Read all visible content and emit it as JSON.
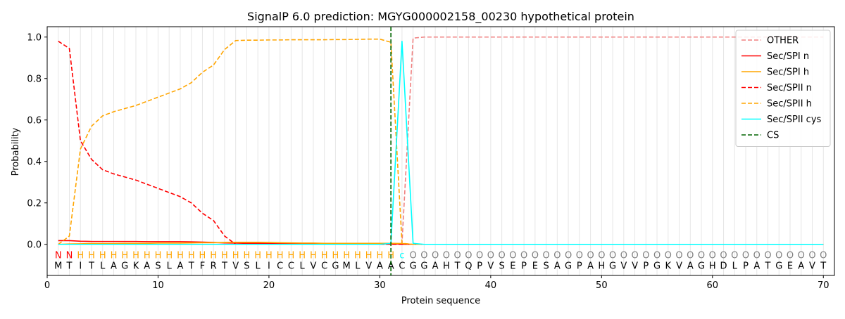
{
  "chart_data": {
    "type": "line",
    "title": "SignalP 6.0 prediction: MGYG000002158_00230 hypothetical protein",
    "xlabel": "Protein sequence",
    "ylabel": "Probability",
    "xlim": [
      0,
      71
    ],
    "ylim": [
      -0.15,
      1.05
    ],
    "xticks": [
      0,
      10,
      20,
      30,
      40,
      50,
      60,
      70
    ],
    "yticks": [
      0.0,
      0.2,
      0.4,
      0.6,
      0.8,
      1.0
    ],
    "ytick_labels": [
      "0.0",
      "0.2",
      "0.4",
      "0.6",
      "0.8",
      "1.0"
    ],
    "grid": "vertical lines at each residue",
    "legend_position": "top-right",
    "sequence": [
      "M",
      "T",
      "I",
      "T",
      "L",
      "A",
      "G",
      "K",
      "A",
      "S",
      "L",
      "A",
      "T",
      "F",
      "R",
      "T",
      "V",
      "S",
      "L",
      "I",
      "C",
      "C",
      "L",
      "V",
      "C",
      "G",
      "M",
      "L",
      "V",
      "A",
      "A",
      "C",
      "G",
      "G",
      "A",
      "H",
      "T",
      "Q",
      "P",
      "V",
      "S",
      "E",
      "P",
      "E",
      "S",
      "A",
      "G",
      "P",
      "A",
      "H",
      "G",
      "V",
      "V",
      "P",
      "G",
      "K",
      "V",
      "A",
      "G",
      "H",
      "D",
      "L",
      "P",
      "A",
      "T",
      "G",
      "E",
      "A",
      "V",
      "T"
    ],
    "region_labels": [
      "N",
      "N",
      "H",
      "H",
      "H",
      "H",
      "H",
      "H",
      "H",
      "H",
      "H",
      "H",
      "H",
      "H",
      "H",
      "H",
      "H",
      "H",
      "H",
      "H",
      "H",
      "H",
      "H",
      "H",
      "H",
      "H",
      "H",
      "H",
      "H",
      "H",
      "H",
      "c",
      "O",
      "O",
      "O",
      "O",
      "O",
      "O",
      "O",
      "O",
      "O",
      "O",
      "O",
      "O",
      "O",
      "O",
      "O",
      "O",
      "O",
      "O",
      "O",
      "O",
      "O",
      "O",
      "O",
      "O",
      "O",
      "O",
      "O",
      "O",
      "O",
      "O",
      "O",
      "O",
      "O",
      "O",
      "O",
      "O",
      "O",
      "O"
    ],
    "region_label_colors": {
      "N": "#ff0000",
      "H": "#ffa500",
      "c": "#00ffff",
      "O": "#808080"
    },
    "cleavage_site": 31,
    "series": [
      {
        "name": "OTHER",
        "color": "#f08080",
        "dash": "dashed",
        "values": [
          0,
          0,
          0,
          0,
          0,
          0,
          0,
          0,
          0,
          0,
          0,
          0,
          0,
          0,
          0,
          0,
          0,
          0,
          0,
          0,
          0,
          0,
          0,
          0,
          0,
          0,
          0,
          0,
          0,
          0,
          0,
          0.005,
          0.995,
          1.0,
          1.0,
          1.0,
          1.0,
          1.0,
          1.0,
          1.0,
          1.0,
          1.0,
          1.0,
          1.0,
          1.0,
          1.0,
          1.0,
          1.0,
          1.0,
          1.0,
          1.0,
          1.0,
          1.0,
          1.0,
          1.0,
          1.0,
          1.0,
          1.0,
          1.0,
          1.0,
          1.0,
          1.0,
          1.0,
          1.0,
          1.0,
          1.0,
          1.0,
          1.0,
          1.0,
          1.0
        ]
      },
      {
        "name": "Sec/SPI n",
        "color": "#ff0000",
        "dash": "solid",
        "values": [
          0.018,
          0.018,
          0.015,
          0.014,
          0.014,
          0.014,
          0.014,
          0.014,
          0.013,
          0.013,
          0.013,
          0.013,
          0.012,
          0.011,
          0.009,
          0.007,
          0.006,
          0.005,
          0.005,
          0.005,
          0.004,
          0.004,
          0.004,
          0.003,
          0.003,
          0.003,
          0.003,
          0.003,
          0.003,
          0.003,
          0.003,
          0.0,
          0.0,
          0,
          0,
          0,
          0,
          0,
          0,
          0,
          0,
          0,
          0,
          0,
          0,
          0,
          0,
          0,
          0,
          0,
          0,
          0,
          0,
          0,
          0,
          0,
          0,
          0,
          0,
          0,
          0,
          0,
          0,
          0,
          0,
          0,
          0,
          0,
          0,
          0
        ]
      },
      {
        "name": "Sec/SPI h",
        "color": "#ffa500",
        "dash": "solid",
        "values": [
          0.0,
          0.002,
          0.003,
          0.004,
          0.004,
          0.004,
          0.005,
          0.005,
          0.005,
          0.006,
          0.006,
          0.006,
          0.007,
          0.008,
          0.008,
          0.009,
          0.01,
          0.01,
          0.01,
          0.009,
          0.008,
          0.007,
          0.006,
          0.006,
          0.005,
          0.005,
          0.005,
          0.005,
          0.005,
          0.005,
          0.005,
          0.004,
          0.0,
          0,
          0,
          0,
          0,
          0,
          0,
          0,
          0,
          0,
          0,
          0,
          0,
          0,
          0,
          0,
          0,
          0,
          0,
          0,
          0,
          0,
          0,
          0,
          0,
          0,
          0,
          0,
          0,
          0,
          0,
          0,
          0,
          0,
          0,
          0,
          0,
          0
        ]
      },
      {
        "name": "Sec/SPII n",
        "color": "#ff0000",
        "dash": "dashed",
        "values": [
          0.98,
          0.945,
          0.5,
          0.41,
          0.36,
          0.34,
          0.325,
          0.31,
          0.29,
          0.27,
          0.25,
          0.23,
          0.2,
          0.15,
          0.115,
          0.04,
          0.0,
          0.0,
          0,
          0,
          0,
          0,
          0,
          0,
          0,
          0,
          0,
          0,
          0,
          0,
          0,
          0,
          0,
          0,
          0,
          0,
          0,
          0,
          0,
          0,
          0,
          0,
          0,
          0,
          0,
          0,
          0,
          0,
          0,
          0,
          0,
          0,
          0,
          0,
          0,
          0,
          0,
          0,
          0,
          0,
          0,
          0,
          0,
          0,
          0,
          0,
          0,
          0,
          0,
          0
        ]
      },
      {
        "name": "Sec/SPII h",
        "color": "#ffa500",
        "dash": "dashed",
        "values": [
          0.0,
          0.04,
          0.46,
          0.57,
          0.62,
          0.64,
          0.655,
          0.67,
          0.69,
          0.71,
          0.73,
          0.75,
          0.78,
          0.83,
          0.865,
          0.94,
          0.983,
          0.985,
          0.985,
          0.986,
          0.986,
          0.987,
          0.987,
          0.987,
          0.987,
          0.988,
          0.988,
          0.989,
          0.99,
          0.99,
          0.975,
          0.005,
          0.0,
          0,
          0,
          0,
          0,
          0,
          0,
          0,
          0,
          0,
          0,
          0,
          0,
          0,
          0,
          0,
          0,
          0,
          0,
          0,
          0,
          0,
          0,
          0,
          0,
          0,
          0,
          0,
          0,
          0,
          0,
          0,
          0,
          0,
          0,
          0,
          0,
          0
        ]
      },
      {
        "name": "Sec/SPII cys",
        "color": "#00ffff",
        "dash": "solid",
        "values": [
          0,
          0,
          0,
          0,
          0,
          0,
          0,
          0,
          0,
          0,
          0,
          0,
          0,
          0,
          0,
          0,
          0,
          0,
          0,
          0,
          0,
          0,
          0,
          0,
          0,
          0,
          0,
          0,
          0,
          0,
          0.005,
          0.98,
          0.005,
          0,
          0,
          0,
          0,
          0,
          0,
          0,
          0,
          0,
          0,
          0,
          0,
          0,
          0,
          0,
          0,
          0,
          0,
          0,
          0,
          0,
          0,
          0,
          0,
          0,
          0,
          0,
          0,
          0,
          0,
          0,
          0,
          0,
          0,
          0,
          0,
          0
        ]
      },
      {
        "name": "CS",
        "color": "#006400",
        "dash": "dashed",
        "values": []
      }
    ]
  }
}
